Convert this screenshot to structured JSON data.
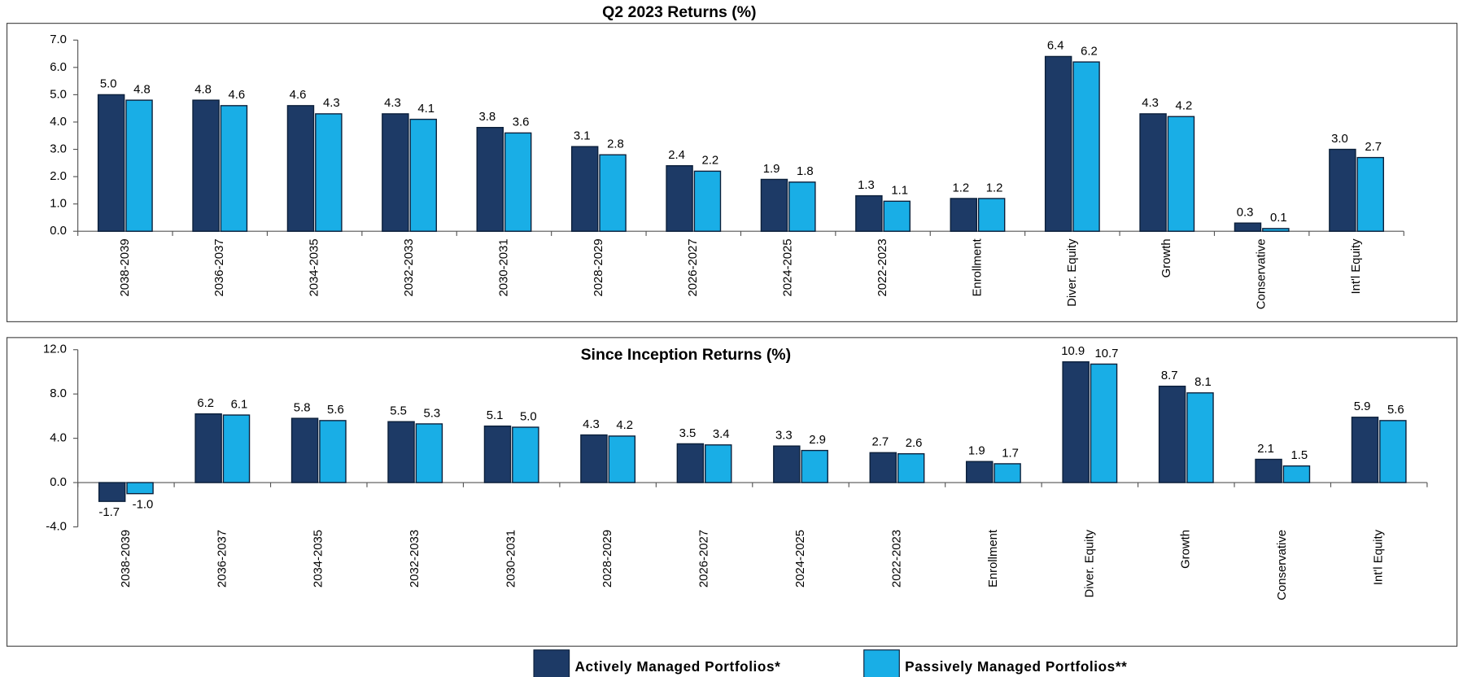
{
  "chart_data": [
    {
      "type": "bar",
      "title": "Q2 2023 Returns (%)",
      "categories": [
        "2038-2039",
        "2036-2037",
        "2034-2035",
        "2032-2033",
        "2030-2031",
        "2028-2029",
        "2026-2027",
        "2024-2025",
        "2022-2023",
        "Enrollment",
        "Diver. Equity",
        "Growth",
        "Conservative",
        "Int'l Equity"
      ],
      "series": [
        {
          "name": "Actively Managed Portfolios*",
          "color": "#1d3a66",
          "values": [
            5.0,
            4.8,
            4.6,
            4.3,
            3.8,
            3.1,
            2.4,
            1.9,
            1.3,
            1.2,
            6.4,
            4.3,
            0.3,
            3.0
          ],
          "value_labels": [
            "5.0",
            "4.8",
            "4.6",
            "4.3",
            "3.8",
            "3.1",
            "2.4",
            "1.9",
            "1.3",
            "1.2",
            "6.4",
            "4.3",
            "0.3",
            "3.0"
          ]
        },
        {
          "name": "Passively Managed Portfolios**",
          "color": "#19aee6",
          "values": [
            4.8,
            4.6,
            4.3,
            4.1,
            3.6,
            2.8,
            2.2,
            1.8,
            1.1,
            1.2,
            6.2,
            4.2,
            0.1,
            2.7
          ],
          "value_labels": [
            "4.8",
            "4.6",
            "4.3",
            "4.1",
            "3.6",
            "2.8",
            "2.2",
            "1.8",
            "1.1",
            "1.2",
            "6.2",
            "4.2",
            "0.1",
            "2.7"
          ]
        }
      ],
      "ylim": [
        0,
        7
      ],
      "yticks": [
        {
          "value": 0,
          "label": "0.0"
        },
        {
          "value": 1,
          "label": "1.0"
        },
        {
          "value": 2,
          "label": "2.0"
        },
        {
          "value": 3,
          "label": "3.0"
        },
        {
          "value": 4,
          "label": "4.0"
        },
        {
          "value": 5,
          "label": "5.0"
        },
        {
          "value": 6,
          "label": "6.0"
        },
        {
          "value": 7,
          "label": "7.0"
        }
      ]
    },
    {
      "type": "bar",
      "title": "Since Inception Returns  (%)",
      "categories": [
        "2038-2039",
        "2036-2037",
        "2034-2035",
        "2032-2033",
        "2030-2031",
        "2028-2029",
        "2026-2027",
        "2024-2025",
        "2022-2023",
        "Enrollment",
        "Diver. Equity",
        "Growth",
        "Conservative",
        "Int'l Equity"
      ],
      "series": [
        {
          "color": "#1d3a66",
          "values": [
            -1.7,
            6.2,
            5.8,
            5.5,
            5.1,
            4.3,
            3.5,
            3.3,
            2.7,
            1.9,
            10.9,
            8.7,
            2.1,
            5.9
          ],
          "value_labels": [
            "-1.7",
            "6.2",
            "5.8",
            "5.5",
            "5.1",
            "4.3",
            "3.5",
            "3.3",
            "2.7",
            "1.9",
            "10.9",
            "8.7",
            "2.1",
            "5.9"
          ]
        },
        {
          "color": "#19aee6",
          "values": [
            -1.0,
            6.1,
            5.6,
            5.3,
            5.0,
            4.2,
            3.4,
            2.9,
            2.6,
            1.7,
            10.7,
            8.1,
            1.5,
            5.6
          ],
          "value_labels": [
            "-1.0",
            "6.1",
            "5.6",
            "5.3",
            "5.0",
            "4.2",
            "3.4",
            "2.9",
            "2.6",
            "1.7",
            "10.7",
            "8.1",
            "1.5",
            "5.6"
          ]
        }
      ],
      "ylim": [
        -4,
        12
      ],
      "yticks": [
        {
          "value": -4,
          "label": "-4.0"
        },
        {
          "value": 0,
          "label": "0.0"
        },
        {
          "value": 4,
          "label": "4.0"
        },
        {
          "value": 8,
          "label": "8.0"
        },
        {
          "value": 12,
          "label": "12.0"
        }
      ]
    }
  ]
}
